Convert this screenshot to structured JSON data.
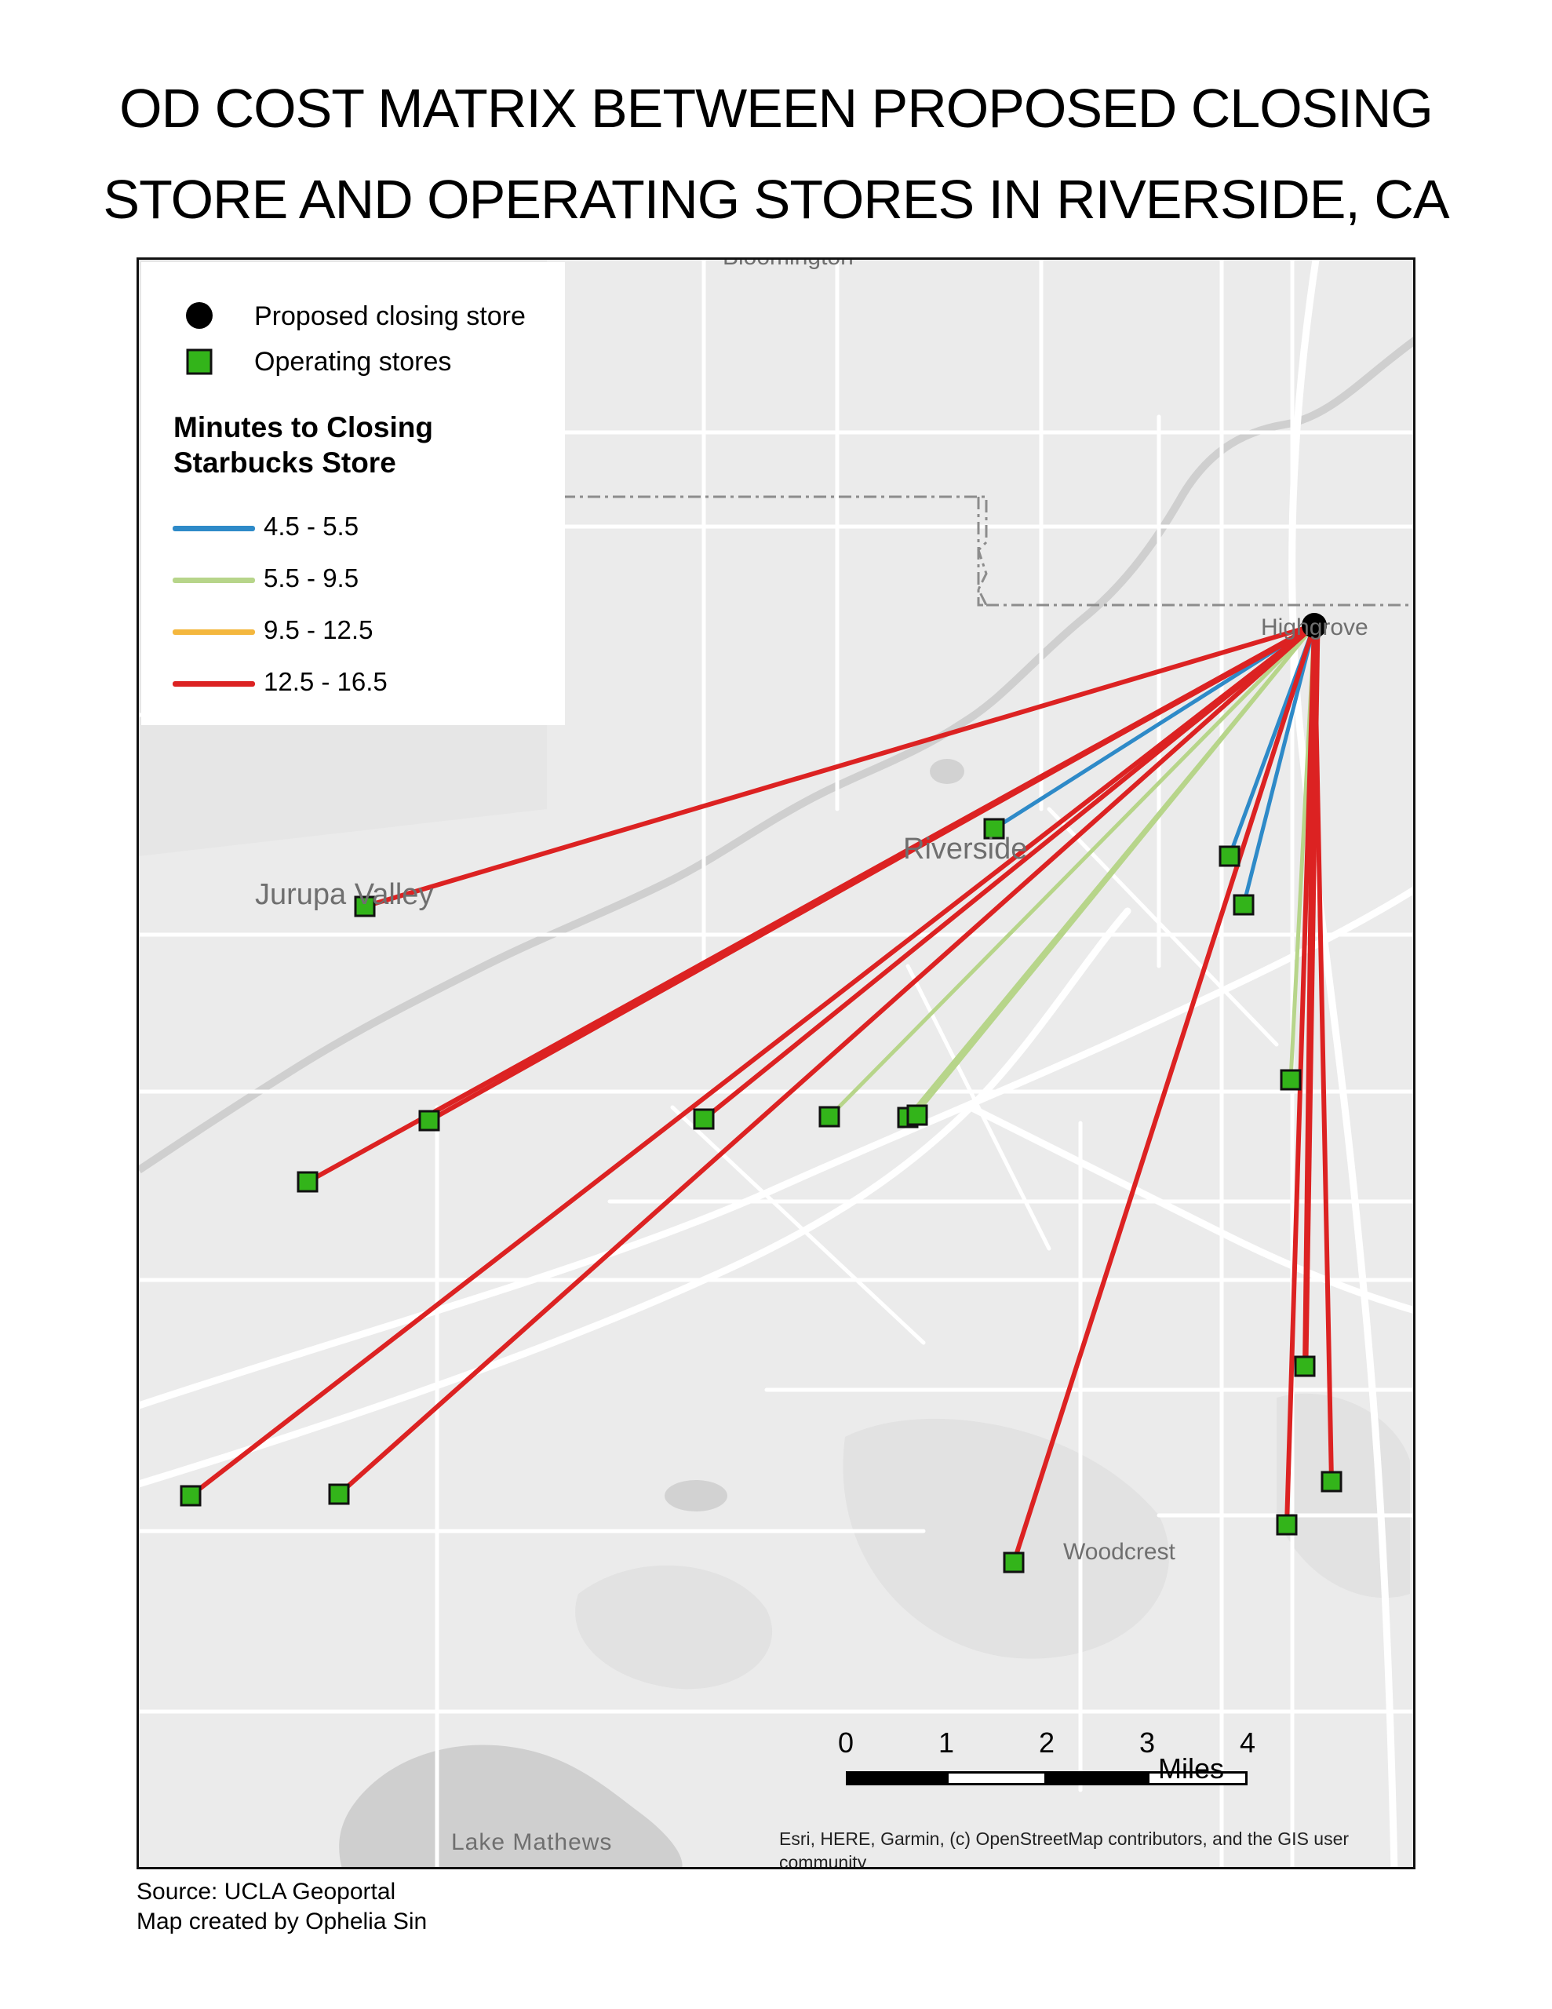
{
  "title": {
    "line1": "OD COST MATRIX BETWEEN PROPOSED CLOSING",
    "line2": "STORE AND OPERATING STORES IN RIVERSIDE, CA"
  },
  "legend": {
    "closing_store_label": "Proposed closing store",
    "operating_stores_label": "Operating stores",
    "heading": "Minutes to Closing Starbucks Store",
    "classes": [
      {
        "range": "4.5 - 5.5",
        "color": "#2e8ac8"
      },
      {
        "range": "5.5 - 9.5",
        "color": "#b7d58a"
      },
      {
        "range": "9.5 - 12.5",
        "color": "#f4b73e"
      },
      {
        "range": "12.5 - 16.5",
        "color": "#dc2222"
      }
    ],
    "store_color": "#33b41a",
    "closing_color": "#000000"
  },
  "places": {
    "bloomington": "Bloomington",
    "highgrove": "Highgrove",
    "riverside": "Riverside",
    "jurupa_valley": "Jurupa Valley",
    "woodcrest": "Woodcrest",
    "lake_mathews": "Lake Mathews"
  },
  "scale_bar": {
    "ticks": [
      "0",
      "1",
      "2",
      "3",
      "4"
    ],
    "units": "Miles"
  },
  "attribution": "Esri, HERE, Garmin, (c) OpenStreetMap contributors, and the GIS user community",
  "footer": {
    "source": "Source: UCLA Geoportal",
    "author": "Map created by Ophelia Sin"
  }
}
